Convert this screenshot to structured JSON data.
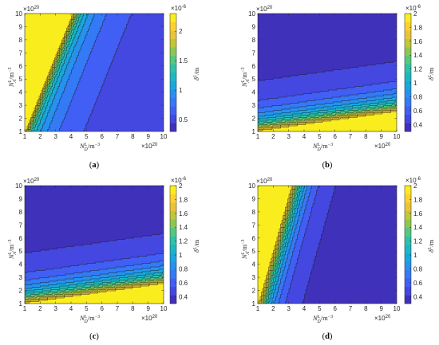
{
  "chart_data": [
    {
      "type": "heatmap",
      "subtype": "filled-contour",
      "panel_label": "a",
      "x_multiplier": "×10",
      "x_multiplier_exp": "20",
      "y_multiplier": "×10",
      "y_multiplier_exp": "20",
      "xlabel": {
        "base": "N",
        "sub": "D",
        "sup": "L",
        "unit": "/m",
        "unit_exp": "−3"
      },
      "ylabel": {
        "base": "N",
        "sub": "A",
        "sup": "L",
        "unit": "/m",
        "unit_exp": "−3"
      },
      "colorbar": {
        "label": {
          "base": "δ",
          "sup": "L",
          "unit": "/m"
        },
        "multiplier": "×10",
        "multiplier_exp": "-6",
        "range": [
          0.3,
          2.3
        ],
        "ticks": [
          0.5,
          1,
          1.5,
          2
        ],
        "tick_labels": [
          "0.5",
          "1",
          "1.5",
          "2"
        ]
      },
      "xlim": [
        1,
        10
      ],
      "ylim": [
        1,
        10
      ],
      "x_ticks": [
        1,
        2,
        3,
        4,
        5,
        6,
        7,
        8,
        9,
        10
      ],
      "y_ticks": [
        1,
        2,
        3,
        4,
        5,
        6,
        7,
        8,
        9,
        10
      ],
      "levels": 14,
      "colormap": "parula"
    },
    {
      "type": "heatmap",
      "subtype": "filled-contour",
      "panel_label": "b",
      "x_multiplier": "×10",
      "x_multiplier_exp": "20",
      "y_multiplier": "×10",
      "y_multiplier_exp": "20",
      "xlabel": {
        "base": "N",
        "sub": "D",
        "sup": "L",
        "unit": "/m",
        "unit_exp": "−3"
      },
      "ylabel": {
        "base": "N",
        "sub": "A",
        "sup": "L",
        "unit": "/m",
        "unit_exp": "−3"
      },
      "colorbar": {
        "label": {
          "base": "δ",
          "sup": "L",
          "unit": "/m"
        },
        "multiplier": "×10",
        "multiplier_exp": "-6",
        "range": [
          0.3,
          2.0
        ],
        "ticks": [
          0.4,
          0.6,
          0.8,
          1,
          1.2,
          1.4,
          1.6,
          1.8,
          2
        ],
        "tick_labels": [
          "0.4",
          "0.6",
          "0.8",
          "1",
          "1.2",
          "1.4",
          "1.6",
          "1.8",
          "2"
        ]
      },
      "xlim": [
        1,
        10
      ],
      "ylim": [
        1,
        10
      ],
      "x_ticks": [
        1,
        2,
        3,
        4,
        5,
        6,
        7,
        8,
        9,
        10
      ],
      "y_ticks": [
        1,
        2,
        3,
        4,
        5,
        6,
        7,
        8,
        9,
        10
      ],
      "levels": 14,
      "colormap": "parula"
    },
    {
      "type": "heatmap",
      "subtype": "filled-contour",
      "panel_label": "c",
      "x_multiplier": "×10",
      "x_multiplier_exp": "20",
      "y_multiplier": "×10",
      "y_multiplier_exp": "20",
      "xlabel": {
        "base": "N",
        "sub": "D",
        "sup": "L",
        "unit": "/m",
        "unit_exp": "−3"
      },
      "ylabel": {
        "base": "N",
        "sub": "A",
        "sup": "L",
        "unit": "/m",
        "unit_exp": "−3"
      },
      "colorbar": {
        "label": {
          "base": "δ",
          "sup": "L",
          "unit": "/m"
        },
        "multiplier": "×10",
        "multiplier_exp": "-6",
        "range": [
          0.3,
          2.0
        ],
        "ticks": [
          0.4,
          0.6,
          0.8,
          1,
          1.2,
          1.4,
          1.6,
          1.8,
          2
        ],
        "tick_labels": [
          "0.4",
          "0.6",
          "0.8",
          "1",
          "1.2",
          "1.4",
          "1.6",
          "1.8",
          "2"
        ]
      },
      "xlim": [
        1,
        10
      ],
      "ylim": [
        1,
        10
      ],
      "x_ticks": [
        1,
        2,
        3,
        4,
        5,
        6,
        7,
        8,
        9,
        10
      ],
      "y_ticks": [
        1,
        2,
        3,
        4,
        5,
        6,
        7,
        8,
        9,
        10
      ],
      "levels": 14,
      "colormap": "parula"
    },
    {
      "type": "heatmap",
      "subtype": "filled-contour",
      "panel_label": "d",
      "x_multiplier": "×10",
      "x_multiplier_exp": "20",
      "y_multiplier": "×10",
      "y_multiplier_exp": "20",
      "xlabel": {
        "base": "N",
        "sub": "D",
        "sup": "L",
        "unit": "/m",
        "unit_exp": "−3"
      },
      "ylabel": {
        "base": "N",
        "sub": "A",
        "sup": "L",
        "unit": "/m",
        "unit_exp": "−3"
      },
      "colorbar": {
        "label": {
          "base": "δ",
          "sup": "L",
          "unit": "/m"
        },
        "multiplier": "×10",
        "multiplier_exp": "-6",
        "range": [
          0.3,
          2.0
        ],
        "ticks": [
          0.4,
          0.6,
          0.8,
          1,
          1.2,
          1.4,
          1.6,
          1.8,
          2
        ],
        "tick_labels": [
          "0.4",
          "0.6",
          "0.8",
          "1",
          "1.2",
          "1.4",
          "1.6",
          "1.8",
          "2"
        ]
      },
      "xlim": [
        1,
        10
      ],
      "ylim": [
        1,
        10
      ],
      "x_ticks": [
        1,
        2,
        3,
        4,
        5,
        6,
        7,
        8,
        9,
        10
      ],
      "y_ticks": [
        1,
        2,
        3,
        4,
        5,
        6,
        7,
        8,
        9,
        10
      ],
      "levels": 14,
      "colormap": "parula"
    }
  ]
}
